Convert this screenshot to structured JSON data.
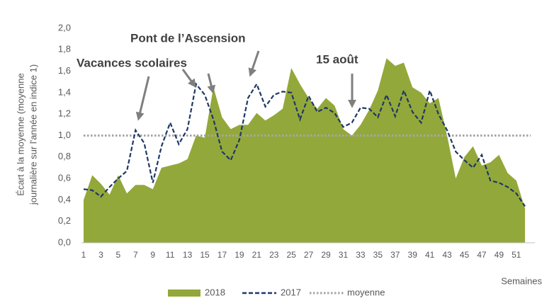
{
  "chart_data": {
    "type": "area-line",
    "y_label": [
      "Écart à la moyenne (moyenne",
      "journalière sur l'année en indice 1)"
    ],
    "x_label": "Semaines",
    "x": [
      1,
      2,
      3,
      4,
      5,
      6,
      7,
      8,
      9,
      10,
      11,
      12,
      13,
      14,
      15,
      16,
      17,
      18,
      19,
      20,
      21,
      22,
      23,
      24,
      25,
      26,
      27,
      28,
      29,
      30,
      31,
      32,
      33,
      34,
      35,
      36,
      37,
      38,
      39,
      40,
      41,
      42,
      43,
      44,
      45,
      46,
      47,
      48,
      49,
      50,
      51,
      52
    ],
    "xlim": [
      1,
      52
    ],
    "xticks": [
      1,
      3,
      5,
      7,
      9,
      11,
      13,
      15,
      17,
      19,
      21,
      23,
      25,
      27,
      29,
      31,
      33,
      35,
      37,
      39,
      41,
      43,
      45,
      47,
      49,
      51
    ],
    "ylim": [
      0,
      2
    ],
    "yticks": [
      {
        "value": 0,
        "label": "0,0"
      },
      {
        "value": 0.2,
        "label": "0,2"
      },
      {
        "value": 0.4,
        "label": "0,4"
      },
      {
        "value": 0.6,
        "label": "0,6"
      },
      {
        "value": 0.8,
        "label": "0,8"
      },
      {
        "value": 1,
        "label": "1,0"
      },
      {
        "value": 1.2,
        "label": "1,2"
      },
      {
        "value": 1.4,
        "label": "1,4"
      },
      {
        "value": 1.6,
        "label": "1,6"
      },
      {
        "value": 1.8,
        "label": "1,8"
      },
      {
        "value": 2,
        "label": "2,0"
      }
    ],
    "series": [
      {
        "name": "2018",
        "kind": "area",
        "color": "#93a83a",
        "values": [
          0.4,
          0.63,
          0.55,
          0.45,
          0.63,
          0.46,
          0.54,
          0.54,
          0.5,
          0.7,
          0.72,
          0.74,
          0.78,
          1.0,
          0.98,
          1.45,
          1.17,
          1.06,
          1.1,
          1.1,
          1.21,
          1.14,
          1.19,
          1.25,
          1.63,
          1.48,
          1.35,
          1.25,
          1.35,
          1.28,
          1.06,
          1.0,
          1.1,
          1.24,
          1.42,
          1.72,
          1.65,
          1.68,
          1.45,
          1.4,
          1.3,
          1.35,
          1.0,
          0.6,
          0.8,
          0.9,
          0.72,
          0.75,
          0.82,
          0.65,
          0.58,
          0.32
        ]
      },
      {
        "name": "2017",
        "kind": "dashed",
        "color": "#1f3864",
        "values": [
          0.5,
          0.49,
          0.43,
          0.52,
          0.6,
          0.67,
          1.05,
          0.93,
          0.56,
          0.9,
          1.12,
          0.92,
          1.06,
          1.48,
          1.38,
          1.15,
          0.85,
          0.77,
          0.96,
          1.35,
          1.48,
          1.27,
          1.38,
          1.41,
          1.4,
          1.15,
          1.37,
          1.22,
          1.26,
          1.21,
          1.08,
          1.12,
          1.26,
          1.25,
          1.17,
          1.38,
          1.18,
          1.42,
          1.22,
          1.12,
          1.42,
          1.2,
          1.05,
          0.85,
          0.77,
          0.7,
          0.82,
          0.58,
          0.56,
          0.52,
          0.46,
          0.34
        ]
      }
    ],
    "reference": {
      "name": "moyenne",
      "value": 1,
      "color": "#a6a6a6"
    },
    "annotations": [
      "Vacances scolaires",
      "Pont de l’Ascension",
      "15 août"
    ]
  }
}
